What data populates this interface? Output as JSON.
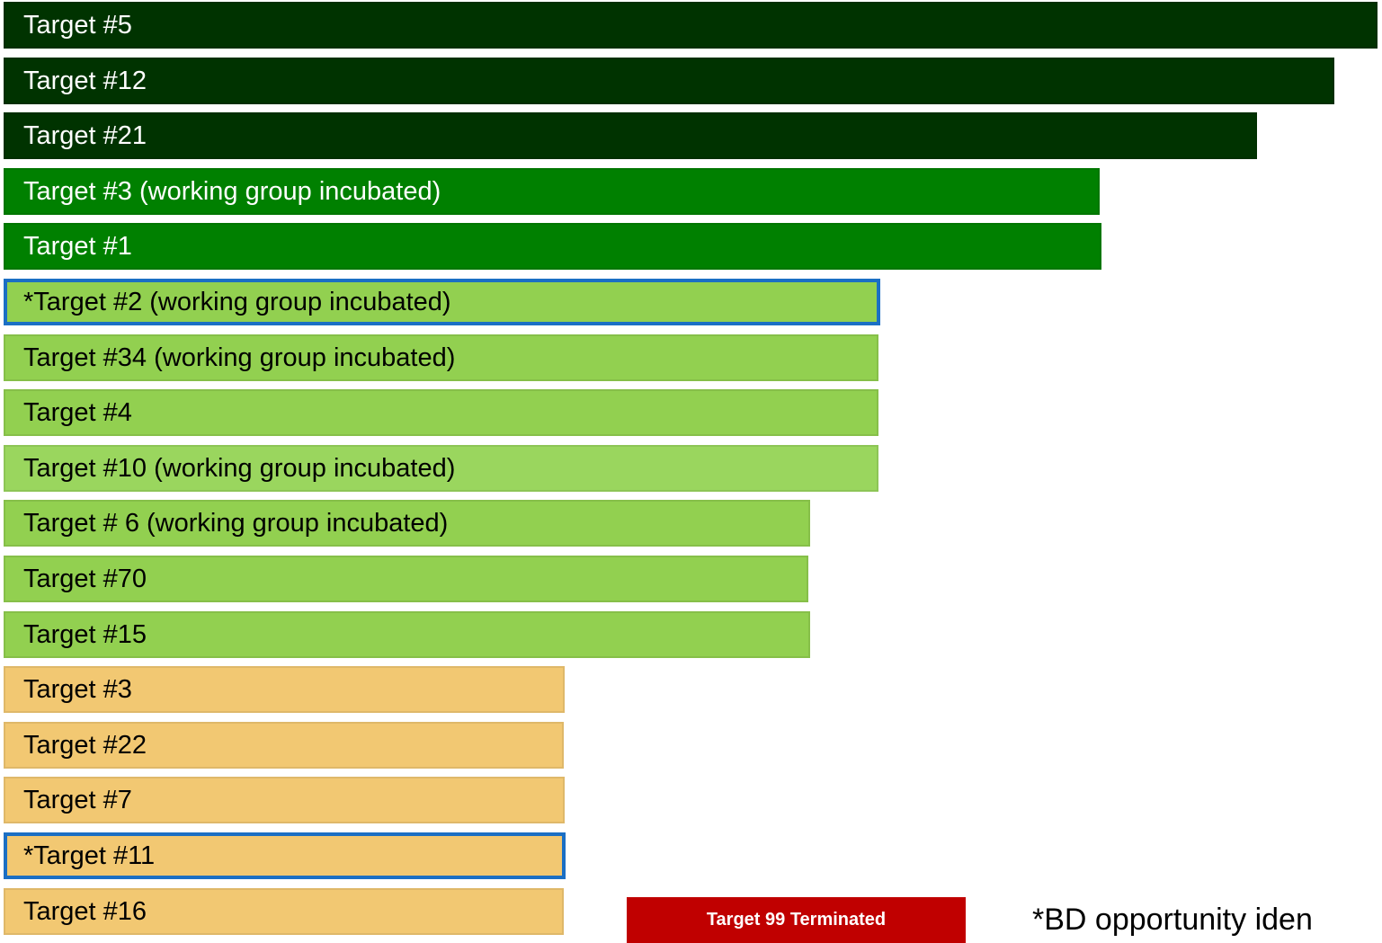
{
  "chart_data": {
    "type": "bar",
    "orientation": "horizontal",
    "title": "",
    "xlabel": "",
    "ylabel": "",
    "bars": [
      {
        "label": "Target #5",
        "value": 1532,
        "color": "#003300",
        "highlight": false
      },
      {
        "label": "Target #12",
        "value": 1484,
        "color": "#003300",
        "highlight": false
      },
      {
        "label": "Target #21",
        "value": 1398,
        "color": "#003300",
        "highlight": false
      },
      {
        "label": "Target #3 (working group incubated)",
        "value": 1223,
        "color": "#008000",
        "highlight": false
      },
      {
        "label": "Target #1",
        "value": 1225,
        "color": "#008000",
        "highlight": false
      },
      {
        "label": "*Target #2 (working group incubated)",
        "value": 979,
        "color": "#92d050",
        "highlight": true
      },
      {
        "label": "Target #34 (working group incubated)",
        "value": 977,
        "color": "#92d050",
        "highlight": false
      },
      {
        "label": "Target #4",
        "value": 977,
        "color": "#92d050",
        "highlight": false
      },
      {
        "label": "Target #10 (working group incubated)",
        "value": 977,
        "color": "#9ad65e",
        "highlight": false
      },
      {
        "label": "Target # 6 (working group incubated)",
        "value": 901,
        "color": "#92d050",
        "highlight": false
      },
      {
        "label": "Target #70",
        "value": 899,
        "color": "#92d050",
        "highlight": false
      },
      {
        "label": "Target #15",
        "value": 901,
        "color": "#92d050",
        "highlight": false
      },
      {
        "label": "Target #3",
        "value": 628,
        "color": "#f2c872",
        "highlight": false
      },
      {
        "label": "Target #22",
        "value": 627,
        "color": "#f2c872",
        "highlight": false
      },
      {
        "label": "Target #7",
        "value": 628,
        "color": "#f2c872",
        "highlight": false
      },
      {
        "label": "*Target #11",
        "value": 629,
        "color": "#f2c872",
        "highlight": true
      },
      {
        "label": "Target #16",
        "value": 627,
        "color": "#f2c872",
        "highlight": false
      }
    ],
    "terminated": {
      "label": "Target 99 Terminated",
      "color": "#c00000"
    },
    "footnote": "*BD opportunity iden"
  }
}
